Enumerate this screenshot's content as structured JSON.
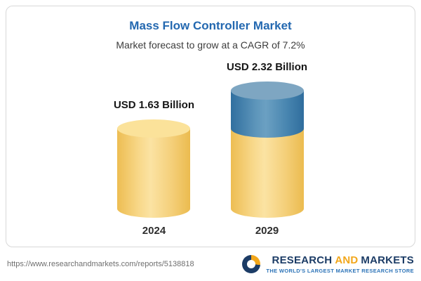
{
  "header": {
    "title": "Mass Flow Controller Market",
    "subtitle": "Market forecast to grow at a CAGR of 7.2%"
  },
  "chart_data": {
    "type": "bar",
    "subtype": "cylinder-3d",
    "categories": [
      "2024",
      "2029"
    ],
    "values": [
      1.63,
      2.32
    ],
    "value_labels": [
      "USD 1.63 Billion",
      "USD 2.32 Billion"
    ],
    "unit": "USD Billion",
    "title": "Mass Flow Controller Market",
    "subtitle": "Market forecast to grow at a CAGR of 7.2%",
    "cagr": "7.2%",
    "legend": "none",
    "grid": false,
    "colors": {
      "base_segment": "#f3cc72",
      "growth_segment": "#3f7fae"
    }
  },
  "footer": {
    "url": "https://www.researchandmarkets.com/reports/5138818",
    "logo": {
      "research": "RESEARCH",
      "and": "AND",
      "markets": "MARKETS",
      "tagline": "THE WORLD'S LARGEST MARKET RESEARCH STORE"
    }
  }
}
